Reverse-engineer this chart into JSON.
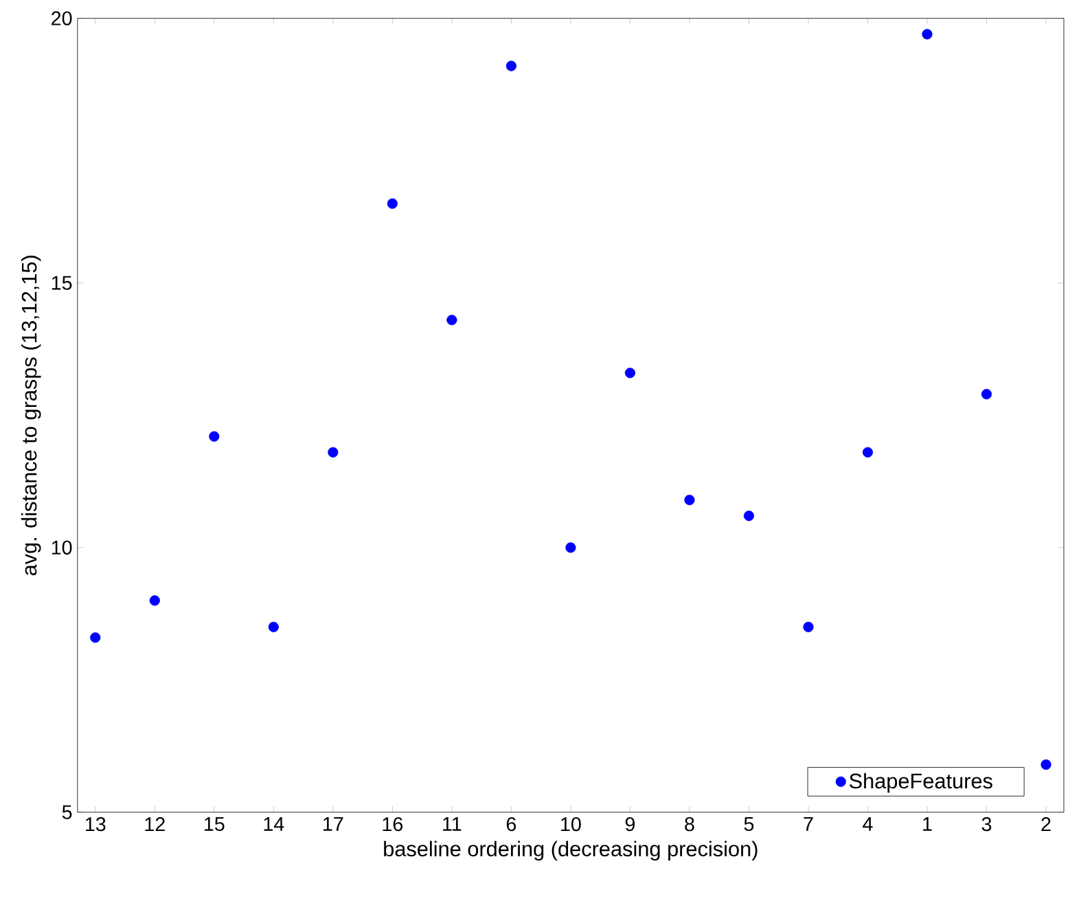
{
  "chart_data": {
    "type": "scatter",
    "xlabel": "baseline ordering (decreasing precision)",
    "ylabel": "avg. distance to grasps (13,12,15)",
    "categories": [
      "13",
      "12",
      "15",
      "14",
      "17",
      "16",
      "11",
      "6",
      "10",
      "9",
      "8",
      "5",
      "7",
      "4",
      "1",
      "3",
      "2"
    ],
    "series": [
      {
        "name": "ShapeFeatures",
        "color": "#0000ff",
        "values": [
          8.3,
          9.0,
          12.1,
          8.5,
          11.8,
          16.5,
          14.3,
          19.1,
          10.0,
          13.3,
          10.9,
          10.6,
          8.5,
          11.8,
          19.7,
          12.9,
          5.9
        ]
      }
    ],
    "ylim": [
      5,
      20
    ],
    "yticks": [
      5,
      10,
      15,
      20
    ],
    "marker": "circle",
    "legend": "bottom right"
  }
}
